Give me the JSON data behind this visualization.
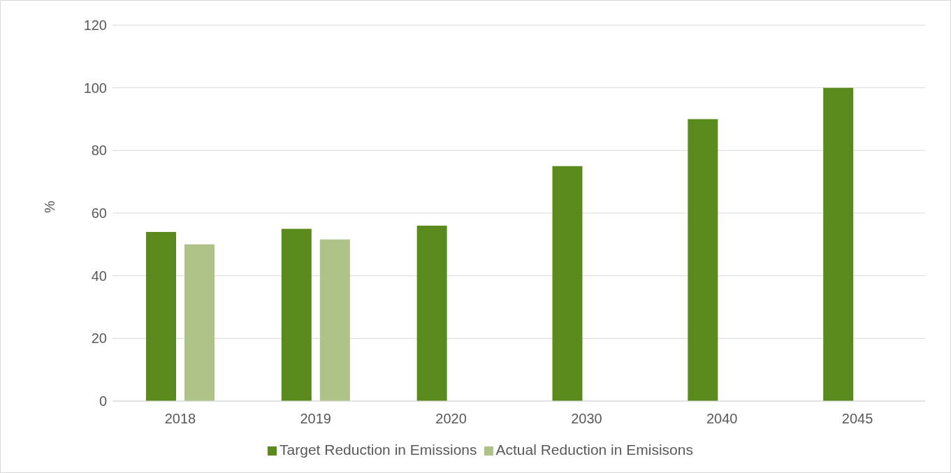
{
  "chart_data": {
    "type": "bar",
    "categories": [
      "2018",
      "2019",
      "2020",
      "2030",
      "2040",
      "2045"
    ],
    "series": [
      {
        "name": "Target Reduction in Emissions",
        "color": "#5b8a1c",
        "values": [
          54,
          55,
          56,
          75,
          90,
          100
        ]
      },
      {
        "name": "Actual Reduction in Emisisons",
        "color": "#adc388",
        "values": [
          50,
          51.6,
          null,
          null,
          null,
          null
        ]
      }
    ],
    "ylabel": "%",
    "ylim": [
      0,
      120
    ],
    "yticks": [
      0,
      20,
      40,
      60,
      80,
      100,
      120
    ],
    "grid": "y",
    "legend": "bottom"
  }
}
